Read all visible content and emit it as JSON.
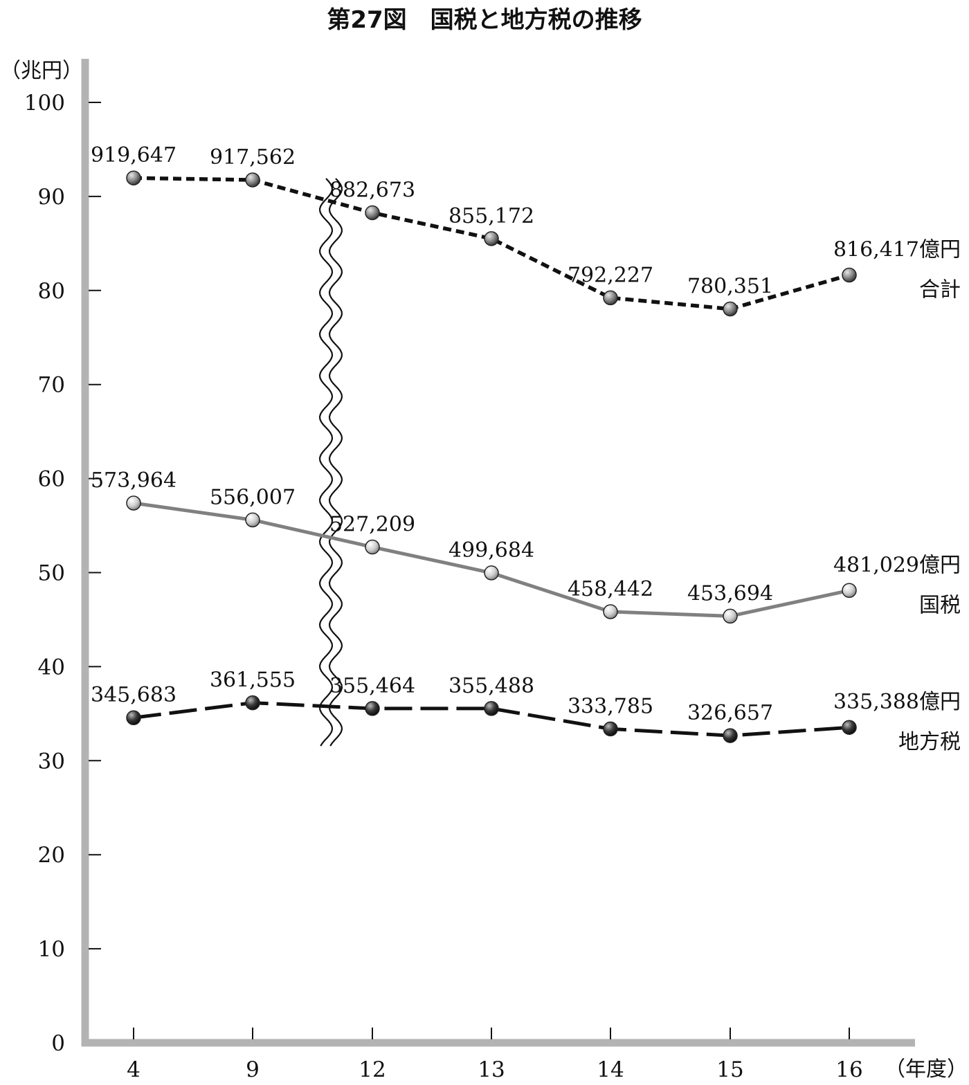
{
  "title": "第27図　国税と地方税の推移",
  "chart_data": {
    "type": "line",
    "title": "第27図　国税と地方税の推移",
    "ylabel": "（兆円）",
    "xlabel": "（年度）",
    "ylim": [
      0,
      100
    ],
    "yticks": [
      "0",
      "10",
      "20",
      "30",
      "40",
      "50",
      "60",
      "70",
      "80",
      "90",
      "100"
    ],
    "categories": [
      "4",
      "9",
      "12",
      "13",
      "14",
      "15",
      "16"
    ],
    "axis_break": "between 9 and 12",
    "grid": false,
    "series": [
      {
        "name": "合計",
        "unit_suffix": "億円",
        "style": "dotted",
        "color": "#111111",
        "marker_color": "#888888",
        "values": [
          919647,
          917562,
          882673,
          855172,
          792227,
          780351,
          816417
        ],
        "labels": [
          "919,647",
          "917,562",
          "882,673",
          "855,172",
          "792,227",
          "780,351",
          "816,417億円"
        ]
      },
      {
        "name": "国税",
        "unit_suffix": "億円",
        "style": "solid",
        "color": "#808080",
        "marker_color": "#cccccc",
        "values": [
          573964,
          556007,
          527209,
          499684,
          458442,
          453694,
          481029
        ],
        "labels": [
          "573,964",
          "556,007",
          "527,209",
          "499,684",
          "458,442",
          "453,694",
          "481,029億円"
        ]
      },
      {
        "name": "地方税",
        "unit_suffix": "億円",
        "style": "dashed",
        "color": "#111111",
        "marker_color": "#333333",
        "values": [
          345683,
          361555,
          355464,
          355488,
          333785,
          326657,
          335388
        ],
        "labels": [
          "345,683",
          "361,555",
          "355,464",
          "355,488",
          "333,785",
          "326,657",
          "335,388億円"
        ]
      }
    ]
  }
}
